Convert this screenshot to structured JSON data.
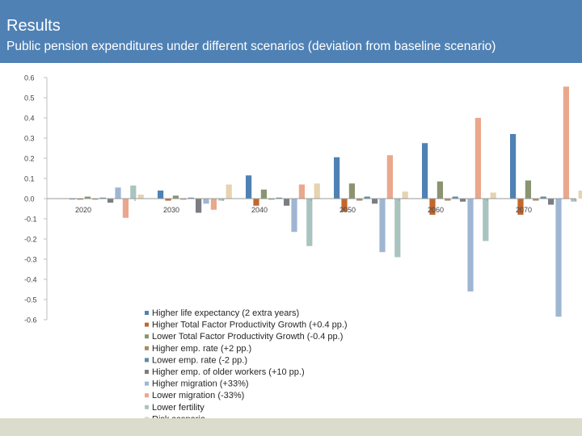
{
  "header": {
    "title": "Results",
    "subtitle": "Public pension expenditures under different scenarios (deviation from baseline scenario)"
  },
  "chart_data": {
    "type": "bar",
    "title": "Public pension expenditures under different scenarios (deviation from baseline scenario)",
    "xlabel": "",
    "ylabel": "",
    "ylim": [
      -0.6,
      0.6
    ],
    "yticks": [
      "0.6",
      "0.5",
      "0.4",
      "0.3",
      "0.2",
      "0.1",
      "0.0",
      "-0.1",
      "-0.2",
      "-0.3",
      "-0.4",
      "-0.5",
      "-0.6"
    ],
    "categories": [
      "2020",
      "2030",
      "2040",
      "2050",
      "2060",
      "2070"
    ],
    "grid": false,
    "legend_position": "bottom",
    "series": [
      {
        "name": "Higher life expectancy (2 extra years)",
        "color": "#4f81b4",
        "values": [
          0.0,
          0.04,
          0.115,
          0.205,
          0.275,
          0.32
        ]
      },
      {
        "name": "Higher Total Factor Productivity Growth  (+0.4 pp.)",
        "color": "#c0682e",
        "values": [
          -0.005,
          -0.01,
          -0.035,
          -0.065,
          -0.08,
          -0.08
        ]
      },
      {
        "name": "Lower Total Factor Productivity Growth  (-0.4 pp.)",
        "color": "#8a9470",
        "values": [
          0.01,
          0.015,
          0.045,
          0.075,
          0.085,
          0.09
        ]
      },
      {
        "name": "Higher emp. rate (+2 pp.)",
        "color": "#a68c60",
        "values": [
          -0.005,
          -0.005,
          -0.005,
          -0.01,
          -0.01,
          -0.01
        ]
      },
      {
        "name": "Lower emp. rate (-2 pp.)",
        "color": "#5a8ca6",
        "values": [
          0.005,
          0.005,
          0.005,
          0.01,
          0.01,
          0.01
        ]
      },
      {
        "name": "Higher emp. of older workers (+10 pp.)",
        "color": "#7a7d82",
        "values": [
          -0.02,
          -0.07,
          -0.035,
          -0.025,
          -0.015,
          -0.03
        ]
      },
      {
        "name": "Higher migration (+33%)",
        "color": "#9fb6d2",
        "values": [
          0.055,
          -0.025,
          -0.165,
          -0.265,
          -0.46,
          -0.585
        ]
      },
      {
        "name": "Lower migration (-33%)",
        "color": "#eaa78c",
        "values": [
          -0.095,
          -0.055,
          0.07,
          0.215,
          0.4,
          0.555
        ]
      },
      {
        "name": "Lower fertility",
        "color": "#a9c4be",
        "values": [
          0.065,
          -0.01,
          -0.235,
          -0.29,
          -0.21,
          -0.015
        ]
      },
      {
        "name": "Risk scenario",
        "color": "#e6d3b0",
        "values": [
          0.02,
          0.07,
          0.075,
          0.035,
          0.03,
          0.04
        ]
      }
    ]
  }
}
